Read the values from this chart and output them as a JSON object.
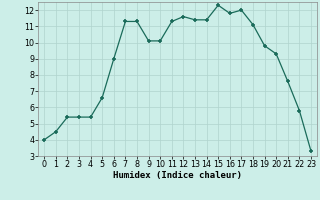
{
  "x": [
    0,
    1,
    2,
    3,
    4,
    5,
    6,
    7,
    8,
    9,
    10,
    11,
    12,
    13,
    14,
    15,
    16,
    17,
    18,
    19,
    20,
    21,
    22,
    23
  ],
  "y": [
    4.0,
    4.5,
    5.4,
    5.4,
    5.4,
    6.6,
    9.0,
    11.3,
    11.3,
    10.1,
    10.1,
    11.3,
    11.6,
    11.4,
    11.4,
    12.3,
    11.8,
    12.0,
    11.1,
    9.8,
    9.3,
    7.6,
    5.8,
    3.3
  ],
  "xlabel": "Humidex (Indice chaleur)",
  "xlim": [
    -0.5,
    23.5
  ],
  "ylim": [
    3,
    12.5
  ],
  "yticks": [
    3,
    4,
    5,
    6,
    7,
    8,
    9,
    10,
    11,
    12
  ],
  "xticks": [
    0,
    1,
    2,
    3,
    4,
    5,
    6,
    7,
    8,
    9,
    10,
    11,
    12,
    13,
    14,
    15,
    16,
    17,
    18,
    19,
    20,
    21,
    22,
    23
  ],
  "line_color": "#1a6b5a",
  "marker_color": "#1a6b5a",
  "bg_color": "#cceee8",
  "grid_color": "#b0d4ce",
  "label_fontsize": 6.5,
  "tick_fontsize": 5.8
}
